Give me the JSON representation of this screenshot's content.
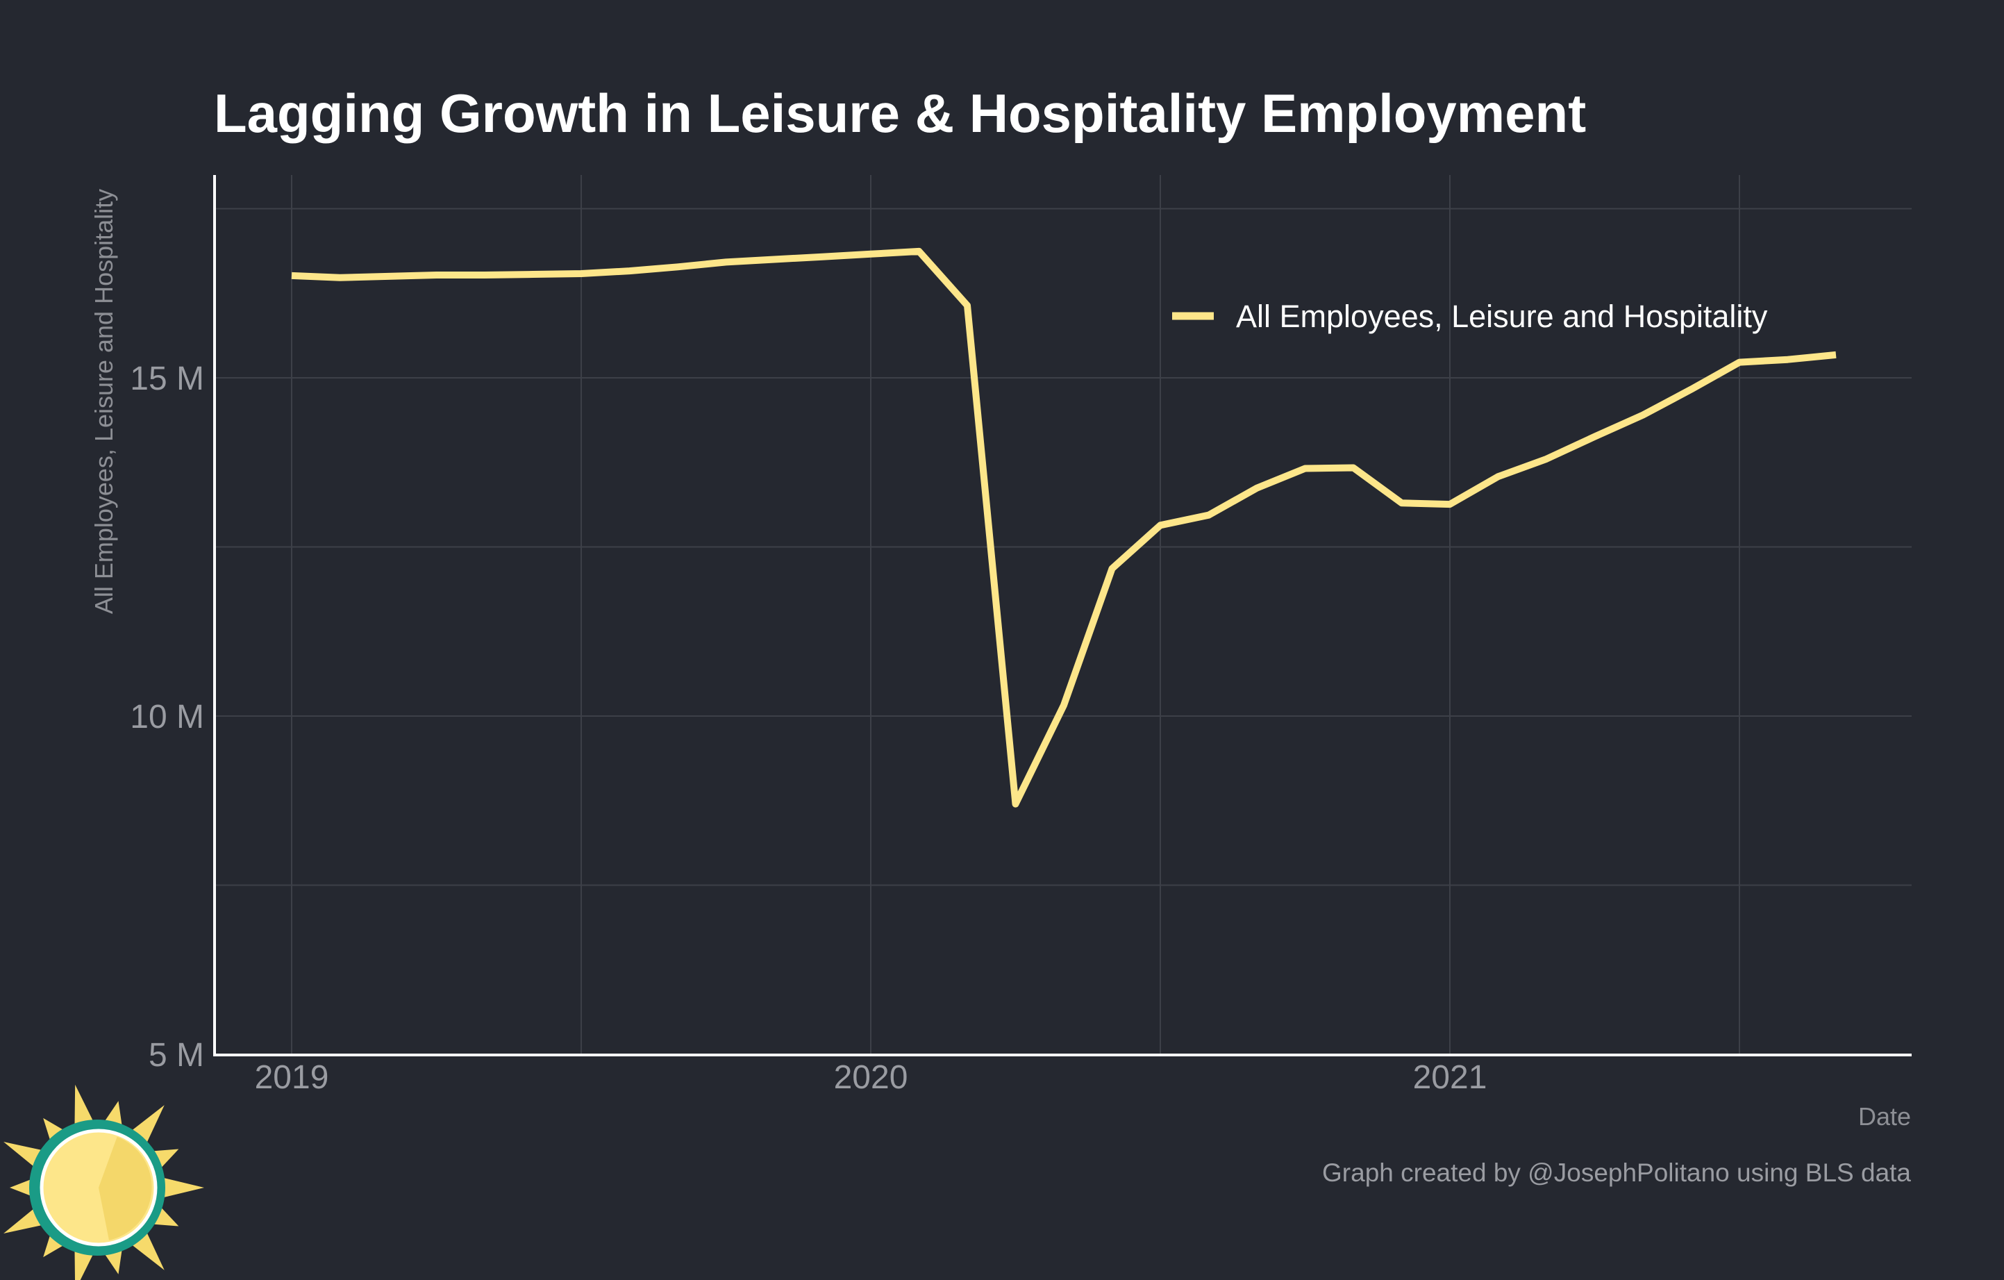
{
  "chart_data": {
    "type": "line",
    "title": "Lagging Growth in Leisure & Hospitality Employment",
    "xlabel": "Date",
    "ylabel": "All Employees, Leisure and Hospitality",
    "caption": "Graph created by @JosephPolitano using BLS data",
    "x_ticks": [
      "2019",
      "2020",
      "2021"
    ],
    "y_ticks": [
      "5 M",
      "10 M",
      "15 M"
    ],
    "ylim": [
      5,
      18
    ],
    "xlim": [
      "2018-11",
      "2021-11"
    ],
    "grid": true,
    "legend_position": "top-right",
    "colors": {
      "background": "#252830",
      "line": "#fde68a",
      "grid": "#3d4048",
      "axis": "#ffffff"
    },
    "series": [
      {
        "name": "All Employees, Leisure and Hospitality",
        "x": [
          "2019-01",
          "2019-02",
          "2019-03",
          "2019-04",
          "2019-05",
          "2019-06",
          "2019-07",
          "2019-08",
          "2019-09",
          "2019-10",
          "2019-11",
          "2019-12",
          "2020-01",
          "2020-02",
          "2020-03",
          "2020-04",
          "2020-05",
          "2020-06",
          "2020-07",
          "2020-08",
          "2020-09",
          "2020-10",
          "2020-11",
          "2020-12",
          "2021-01",
          "2021-02",
          "2021-03",
          "2021-04",
          "2021-05",
          "2021-06",
          "2021-07",
          "2021-08",
          "2021-09"
        ],
        "values": [
          16.51,
          16.48,
          16.5,
          16.52,
          16.52,
          16.53,
          16.54,
          16.58,
          16.64,
          16.71,
          16.75,
          16.79,
          16.83,
          16.87,
          16.07,
          8.7,
          10.16,
          12.18,
          12.82,
          12.97,
          13.37,
          13.66,
          13.67,
          13.15,
          13.13,
          13.54,
          13.8,
          14.13,
          14.45,
          14.83,
          15.23,
          15.27,
          15.34
        ]
      }
    ]
  },
  "logo": {
    "name": "sun-logo",
    "colors": {
      "ring": "#1a9b86",
      "face": "#fde68a",
      "shade": "#f4d76a",
      "rays": "#f6da6b"
    }
  }
}
